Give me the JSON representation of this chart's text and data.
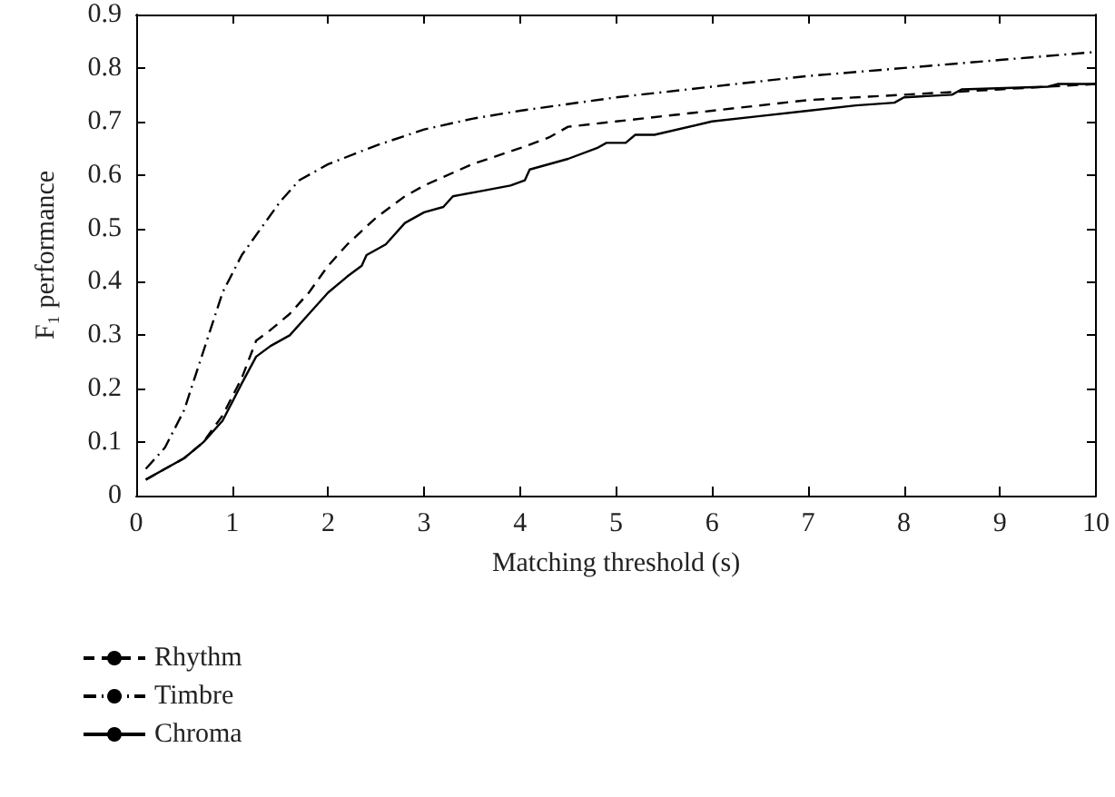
{
  "chart_data": {
    "type": "line",
    "xlabel": "Matching threshold (s)",
    "ylabel": "F₁ performance",
    "xlim": [
      0,
      10
    ],
    "xticks": [
      0,
      1,
      2,
      3,
      4,
      5,
      6,
      7,
      8,
      9,
      10
    ],
    "ylim": [
      0,
      0.9
    ],
    "yticks": [
      0,
      0.1,
      0.2,
      0.3,
      0.4,
      0.5,
      0.6,
      0.7,
      0.8,
      0.9
    ],
    "grid": false,
    "legend": "bottom left",
    "marker": "none",
    "series": [
      {
        "name": "Rhythm",
        "color": "#000000",
        "line_style": "dashed",
        "x": [
          0.1,
          0.3,
          0.5,
          0.7,
          0.9,
          1.1,
          1.25,
          1.4,
          1.6,
          1.8,
          2.0,
          2.2,
          2.5,
          2.8,
          3.0,
          3.5,
          4.0,
          4.3,
          4.5,
          5.0,
          6.0,
          7.0,
          8.0,
          9.0,
          10.0
        ],
        "values": [
          0.03,
          0.05,
          0.07,
          0.1,
          0.15,
          0.22,
          0.29,
          0.31,
          0.34,
          0.38,
          0.43,
          0.47,
          0.52,
          0.56,
          0.58,
          0.62,
          0.65,
          0.67,
          0.69,
          0.7,
          0.72,
          0.74,
          0.75,
          0.76,
          0.77
        ]
      },
      {
        "name": "Timbre",
        "color": "#000000",
        "line_style": "dashdot",
        "x": [
          0.1,
          0.3,
          0.5,
          0.7,
          0.9,
          1.1,
          1.3,
          1.5,
          1.7,
          2.0,
          2.5,
          3.0,
          3.5,
          4.0,
          5.0,
          6.0,
          7.0,
          8.0,
          9.0,
          10.0
        ],
        "values": [
          0.05,
          0.09,
          0.16,
          0.27,
          0.38,
          0.45,
          0.5,
          0.55,
          0.59,
          0.62,
          0.655,
          0.685,
          0.705,
          0.72,
          0.745,
          0.765,
          0.785,
          0.8,
          0.815,
          0.83
        ]
      },
      {
        "name": "Chroma",
        "color": "#000000",
        "line_style": "solid",
        "x": [
          0.1,
          0.3,
          0.5,
          0.7,
          0.9,
          1.1,
          1.25,
          1.4,
          1.6,
          1.8,
          2.0,
          2.2,
          2.35,
          2.4,
          2.6,
          2.8,
          3.0,
          3.2,
          3.3,
          3.6,
          3.9,
          4.05,
          4.1,
          4.5,
          4.8,
          4.9,
          5.1,
          5.2,
          5.4,
          6.0,
          6.5,
          7.0,
          7.5,
          7.9,
          8.0,
          8.5,
          8.6,
          9.5,
          9.6,
          10.0
        ],
        "values": [
          0.03,
          0.05,
          0.07,
          0.1,
          0.14,
          0.21,
          0.26,
          0.28,
          0.3,
          0.34,
          0.38,
          0.41,
          0.43,
          0.45,
          0.47,
          0.51,
          0.53,
          0.54,
          0.56,
          0.57,
          0.58,
          0.59,
          0.61,
          0.63,
          0.65,
          0.66,
          0.66,
          0.675,
          0.675,
          0.7,
          0.71,
          0.72,
          0.73,
          0.735,
          0.745,
          0.75,
          0.76,
          0.765,
          0.77,
          0.77
        ]
      }
    ]
  }
}
